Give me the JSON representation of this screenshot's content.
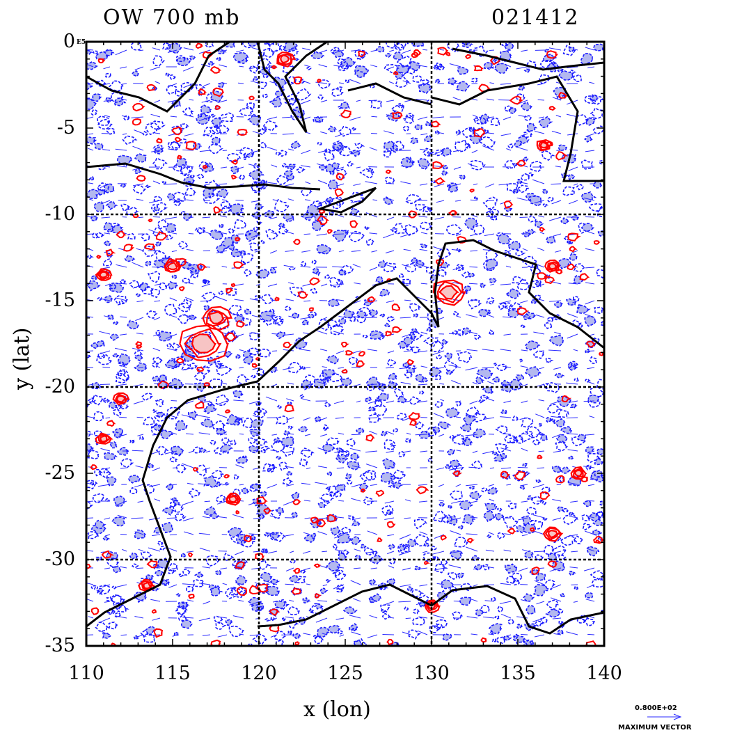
{
  "header": {
    "title_left": "OW 700 mb",
    "title_right": "021412"
  },
  "axes": {
    "xlabel": "x (lon)",
    "ylabel": "y (lat)",
    "x_ticks": [
      "110",
      "115",
      "120",
      "125",
      "130",
      "135",
      "140"
    ],
    "x_tick_values": [
      110,
      115,
      120,
      125,
      130,
      135,
      140
    ],
    "y_ticks": [
      "0",
      "-5",
      "-10",
      "-15",
      "-20",
      "-25",
      "-30",
      "-35"
    ],
    "y_tick_values": [
      0,
      -5,
      -10,
      -15,
      -20,
      -25,
      -30,
      -35
    ],
    "xlim": [
      110,
      140
    ],
    "ylim": [
      -35,
      0
    ],
    "grid_lon": [
      120,
      130
    ],
    "grid_lat": [
      -10,
      -20,
      -30
    ],
    "corner_label": "E5"
  },
  "legend": {
    "max_vector_value": "0.800E+02",
    "max_vector_caption": "MAXIMUM VECTOR"
  },
  "colors": {
    "positive_contour": "#ff0000",
    "positive_fill": "#f7c4c4",
    "negative_contour": "#1a1aff",
    "negative_fill": "#b3b8ef",
    "vector": "#2a2aff",
    "coastline": "#000000"
  },
  "chart_data": {
    "type": "contour_map",
    "variable": "OW",
    "level": "700 mb",
    "time": "021412",
    "xlabel": "x (lon)",
    "ylabel": "y (lat)",
    "xlim": [
      110,
      140
    ],
    "ylim": [
      -35,
      0
    ],
    "positive_features": [
      {
        "lon": 116.8,
        "lat": -17.5,
        "r": 1.3
      },
      {
        "lon": 117.5,
        "lat": -16.0,
        "r": 0.8
      },
      {
        "lon": 115.0,
        "lat": -13.0,
        "r": 0.5
      },
      {
        "lon": 131.0,
        "lat": -14.5,
        "r": 0.9
      },
      {
        "lon": 111.0,
        "lat": -13.5,
        "r": 0.4
      },
      {
        "lon": 111.0,
        "lat": -23.0,
        "r": 0.4
      },
      {
        "lon": 112.0,
        "lat": -20.7,
        "r": 0.4
      },
      {
        "lon": 121.5,
        "lat": -1.0,
        "r": 0.5
      },
      {
        "lon": 137.0,
        "lat": -28.5,
        "r": 0.5
      },
      {
        "lon": 138.5,
        "lat": -25.0,
        "r": 0.4
      },
      {
        "lon": 130.0,
        "lat": -32.7,
        "r": 0.4
      },
      {
        "lon": 113.5,
        "lat": -31.5,
        "r": 0.4
      },
      {
        "lon": 118.5,
        "lat": -26.5,
        "r": 0.4
      },
      {
        "lon": 137.0,
        "lat": -13.0,
        "r": 0.4
      },
      {
        "lon": 136.5,
        "lat": -6.0,
        "r": 0.4
      }
    ]
  }
}
